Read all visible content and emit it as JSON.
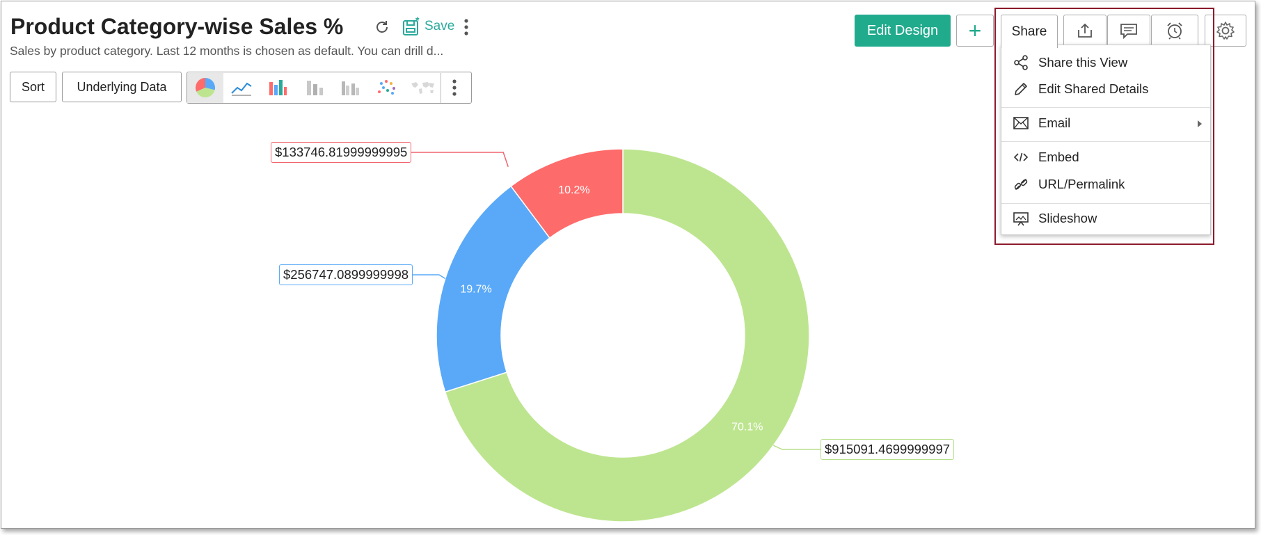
{
  "header": {
    "title": "Product Category-wise Sales %",
    "subtitle": "Sales by product category. Last 12 months is chosen as default. You can drill d...",
    "save_label": "Save"
  },
  "toolbar": {
    "sort_label": "Sort",
    "underlying_label": "Underlying Data",
    "chart_types": [
      "pie-icon",
      "line-icon",
      "bar-icon",
      "stacked-bar-icon",
      "grouped-bar-icon",
      "scatter-icon",
      "map-icon"
    ]
  },
  "actions": {
    "edit_design_label": "Edit Design",
    "add_label": "+",
    "share_tab_label": "Share"
  },
  "share_menu": {
    "items": [
      {
        "label": "Share this View",
        "icon": "share-nodes-icon"
      },
      {
        "label": "Edit Shared Details",
        "icon": "pencil-icon"
      },
      {
        "label": "Email",
        "icon": "envelope-icon",
        "has_submenu": true
      },
      {
        "label": "Embed",
        "icon": "code-icon"
      },
      {
        "label": "URL/Permalink",
        "icon": "link-icon"
      },
      {
        "label": "Slideshow",
        "icon": "slideshow-icon"
      }
    ]
  },
  "colors": {
    "accent": "#21ab8d",
    "highlight_border": "#8b1a2b"
  },
  "chart_data": {
    "type": "pie",
    "variant": "donut",
    "slices": [
      {
        "value": 915091.4699999997,
        "percent_label": "70.1%",
        "value_label": "$915091.4699999997",
        "color": "#bde58f",
        "label_color": "#b8df8c"
      },
      {
        "value": 256747.0899999998,
        "percent_label": "19.7%",
        "value_label": "$256747.0899999998",
        "color": "#5aa9f8",
        "label_color": "#5aa9f8"
      },
      {
        "value": 133746.81999999995,
        "percent_label": "10.2%",
        "value_label": "$133746.81999999995",
        "color": "#fe6b6b",
        "label_color": "#f0646e"
      }
    ]
  }
}
